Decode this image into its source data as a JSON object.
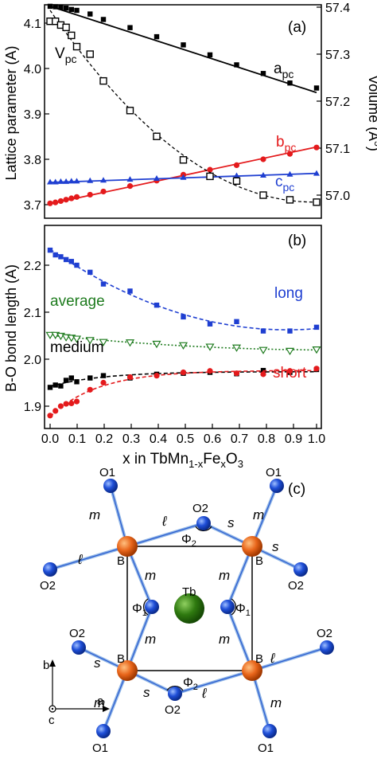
{
  "colors": {
    "black": "#000000",
    "red": "#e41a1c",
    "blue": "#1f3fd1",
    "green": "#1e7b1e",
    "axis": "#000000",
    "b_atom": "#e8651a",
    "o_atom": "#1f4fd8",
    "tb_atom": "#2f7a10",
    "bond": "#8fb5e6"
  },
  "chart_data": [
    {
      "panel": "(a)",
      "type": "line",
      "xlabel": "",
      "ylabel": "Lattice parameter (A)",
      "ylabel_right": "Volume (A³)",
      "xlim": [
        -0.02,
        1.02
      ],
      "ylim": [
        3.68,
        4.15
      ],
      "ylim_right": [
        56.97,
        57.42
      ],
      "x_ticks": [
        0.0,
        0.1,
        0.2,
        0.3,
        0.4,
        0.5,
        0.6,
        0.7,
        0.8,
        0.9,
        1.0
      ],
      "y_ticks": [
        3.7,
        3.8,
        3.9,
        4.0,
        4.1
      ],
      "y_ticks_right": [
        57.0,
        57.1,
        57.2,
        57.3,
        57.4
      ],
      "series": [
        {
          "name": "a_pc",
          "label_main": "a",
          "label_sub": "pc",
          "color": "black",
          "marker": "square",
          "fit": "solid",
          "axis": "left",
          "x": [
            0.0,
            0.02,
            0.04,
            0.06,
            0.08,
            0.1,
            0.15,
            0.2,
            0.3,
            0.4,
            0.5,
            0.6,
            0.7,
            0.8,
            0.9,
            1.0
          ],
          "y": [
            4.137,
            4.136,
            4.135,
            4.133,
            4.13,
            4.128,
            4.12,
            4.108,
            4.09,
            4.07,
            4.052,
            4.03,
            4.008,
            3.989,
            3.968,
            3.957
          ],
          "fit_y": [
            4.137,
            3.947
          ]
        },
        {
          "name": "b_pc",
          "label_main": "b",
          "label_sub": "pc",
          "color": "red",
          "marker": "circle",
          "fit": "solid",
          "axis": "left",
          "x": [
            0.0,
            0.02,
            0.04,
            0.06,
            0.08,
            0.1,
            0.15,
            0.2,
            0.3,
            0.4,
            0.5,
            0.6,
            0.7,
            0.8,
            0.9,
            1.0
          ],
          "y": [
            3.703,
            3.705,
            3.708,
            3.711,
            3.714,
            3.717,
            3.722,
            3.729,
            3.741,
            3.753,
            3.766,
            3.777,
            3.787,
            3.8,
            3.812,
            3.826
          ],
          "fit_y": [
            3.702,
            3.827
          ]
        },
        {
          "name": "c_pc",
          "label_main": "c",
          "label_sub": "pc",
          "color": "blue",
          "marker": "triangle",
          "fit": "solid",
          "axis": "left",
          "x": [
            0.0,
            0.02,
            0.04,
            0.06,
            0.08,
            0.1,
            0.15,
            0.2,
            0.3,
            0.4,
            0.5,
            0.6,
            0.7,
            0.8,
            0.9,
            1.0
          ],
          "y": [
            3.75,
            3.75,
            3.751,
            3.751,
            3.752,
            3.752,
            3.753,
            3.754,
            3.756,
            3.758,
            3.76,
            3.762,
            3.764,
            3.765,
            3.767,
            3.769
          ],
          "fit_y": [
            3.749,
            3.769
          ]
        },
        {
          "name": "V_pc",
          "label_main": "V",
          "label_sub": "pc",
          "color": "black",
          "marker": "open-square",
          "fit": "dashed",
          "axis": "right",
          "x": [
            0.0,
            0.02,
            0.04,
            0.06,
            0.08,
            0.1,
            0.15,
            0.2,
            0.3,
            0.4,
            0.5,
            0.6,
            0.7,
            0.8,
            0.9,
            1.0
          ],
          "y": [
            57.37,
            57.37,
            57.362,
            57.357,
            57.34,
            57.316,
            57.3,
            57.243,
            57.18,
            57.125,
            57.075,
            57.04,
            57.03,
            57.0,
            56.99,
            56.985
          ]
        }
      ]
    },
    {
      "panel": "(b)",
      "type": "scatter",
      "xlabel": "x in TbMn1-xFexO3",
      "ylabel": "B-O bond length (A)",
      "xlim": [
        -0.02,
        1.02
      ],
      "ylim": [
        1.86,
        2.25
      ],
      "x_ticks": [
        0.0,
        0.1,
        0.2,
        0.3,
        0.4,
        0.5,
        0.6,
        0.7,
        0.8,
        0.9,
        1.0
      ],
      "y_ticks": [
        1.9,
        2.0,
        2.1,
        2.2
      ],
      "series": [
        {
          "name": "long",
          "color": "blue",
          "marker": "square",
          "fit": "dashed",
          "x": [
            0.0,
            0.02,
            0.04,
            0.06,
            0.08,
            0.1,
            0.15,
            0.2,
            0.3,
            0.4,
            0.5,
            0.6,
            0.7,
            0.8,
            0.9,
            1.0
          ],
          "y": [
            2.232,
            2.222,
            2.218,
            2.212,
            2.208,
            2.2,
            2.185,
            2.16,
            2.145,
            2.115,
            2.09,
            2.075,
            2.08,
            2.06,
            2.06,
            2.068
          ]
        },
        {
          "name": "average",
          "color": "green",
          "marker": "open-triangle-down",
          "fit": "dotted",
          "x": [
            0.0,
            0.02,
            0.04,
            0.06,
            0.08,
            0.1,
            0.15,
            0.2,
            0.3,
            0.4,
            0.5,
            0.6,
            0.7,
            0.8,
            0.9,
            1.0
          ],
          "y": [
            2.052,
            2.052,
            2.05,
            2.047,
            2.046,
            2.044,
            2.041,
            2.037,
            2.036,
            2.033,
            2.03,
            2.027,
            2.025,
            2.02,
            2.018,
            2.021
          ]
        },
        {
          "name": "medium",
          "color": "black",
          "marker": "square",
          "fit": "dashed",
          "x": [
            0.0,
            0.02,
            0.04,
            0.06,
            0.08,
            0.1,
            0.15,
            0.2,
            0.3,
            0.4,
            0.5,
            0.6,
            0.7,
            0.8,
            0.9,
            1.0
          ],
          "y": [
            1.94,
            1.945,
            1.943,
            1.955,
            1.96,
            1.952,
            1.96,
            1.965,
            1.96,
            1.968,
            1.97,
            1.972,
            1.969,
            1.976,
            1.972,
            1.978
          ]
        },
        {
          "name": "short",
          "color": "red",
          "marker": "circle",
          "fit": "dashed",
          "x": [
            0.0,
            0.02,
            0.04,
            0.06,
            0.08,
            0.1,
            0.15,
            0.2,
            0.3,
            0.4,
            0.5,
            0.6,
            0.7,
            0.8,
            0.9,
            1.0
          ],
          "y": [
            1.88,
            1.89,
            1.9,
            1.905,
            1.906,
            1.91,
            1.935,
            1.95,
            1.962,
            1.965,
            1.972,
            1.975,
            1.97,
            1.968,
            1.975,
            1.98
          ]
        }
      ]
    }
  ],
  "panel_a": {
    "tag": "(a)"
  },
  "panel_b": {
    "tag": "(b)"
  },
  "x_axis": {
    "tick_labels": [
      "0.0",
      "0.1",
      "0.2",
      "0.3",
      "0.4",
      "0.5",
      "0.6",
      "0.7",
      "0.8",
      "0.9",
      "1.0"
    ],
    "title_prefix": "x in TbMn",
    "title_sub1": "1-x",
    "title_mid": "Fe",
    "title_sub2": "x",
    "title_suffix": "O",
    "title_sub3": "3"
  },
  "axis_a": {
    "left_ticks": [
      "3.7",
      "3.8",
      "3.9",
      "4.0",
      "4.1"
    ],
    "right_ticks": [
      "57.0",
      "57.1",
      "57.2",
      "57.3",
      "57.4"
    ],
    "left_title": "Lattice parameter (A)",
    "right_title": "Volume (A",
    "right_title_sup": "3",
    "right_title_end": ")"
  },
  "axis_b": {
    "left_ticks": [
      "1.9",
      "2.0",
      "2.1",
      "2.2"
    ],
    "left_title": "B-O bond length (A)"
  },
  "series_labels": {
    "a_main": "a",
    "a_sub": "pc",
    "b_main": "b",
    "b_sub": "pc",
    "c_main": "c",
    "c_sub": "pc",
    "v_main": "V",
    "v_sub": "pc",
    "long": "long",
    "average": "average",
    "medium": "medium",
    "short": "short"
  },
  "diagram": {
    "tag": "(c)",
    "o1": "O1",
    "o2": "O2",
    "b": "B",
    "tb": "Tb",
    "phi": "Φ",
    "sub1": "1",
    "sub2": "2",
    "bond_m": "m",
    "bond_l": "ℓ",
    "bond_s": "s",
    "axis_a": "a",
    "axis_b": "b",
    "axis_c": "c"
  }
}
